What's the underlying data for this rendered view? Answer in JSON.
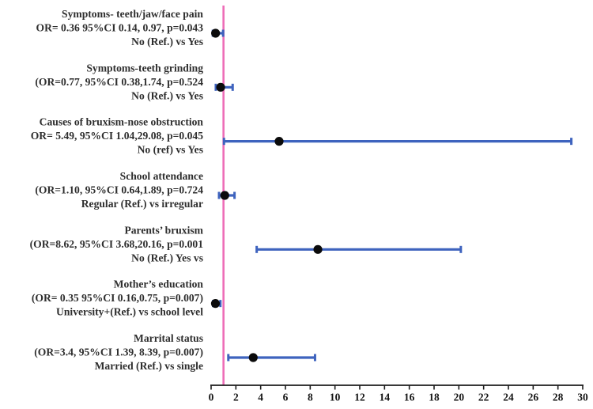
{
  "chart_data": {
    "type": "forest",
    "title": "",
    "xlabel": "",
    "ylabel": "",
    "x_axis": {
      "min": 0,
      "max": 30,
      "tick_step": 2,
      "ticks": [
        0,
        2,
        4,
        6,
        8,
        10,
        12,
        14,
        16,
        18,
        20,
        22,
        24,
        26,
        28,
        30
      ]
    },
    "reference_line": {
      "value": 1
    },
    "colors": {
      "ci_line": "#3E63BE",
      "reference_line": "#EE6DB8",
      "marker": "#0b0b0b",
      "label_text": "#2e2e2e",
      "axis": "#1c1c1c"
    },
    "legend": null,
    "grid": false,
    "rows": [
      {
        "title": "Symptoms- teeth/jaw/face pain",
        "stats": "OR= 0.36 95%CI 0.14, 0.97, p=0.043",
        "comparison": "No (Ref.) vs Yes",
        "or": 0.36,
        "ci_low": 0.14,
        "ci_high": 0.97,
        "p": 0.043
      },
      {
        "title": "Symptoms-teeth grinding",
        "stats": "(OR=0.77, 95%CI 0.38,1.74, p=0.524",
        "comparison": "No (Ref.) vs Yes",
        "or": 0.77,
        "ci_low": 0.38,
        "ci_high": 1.74,
        "p": 0.524
      },
      {
        "title": "Causes of bruxism-nose obstruction",
        "stats": "OR= 5.49, 95%CI 1.04,29.08, p=0.045",
        "comparison": "No (ref) vs Yes",
        "or": 5.49,
        "ci_low": 1.04,
        "ci_high": 29.08,
        "p": 0.045
      },
      {
        "title": "School attendance",
        "stats": "(OR=1.10, 95%CI 0.64,1.89, p=0.724",
        "comparison": "Regular (Ref.) vs irregular",
        "or": 1.1,
        "ci_low": 0.64,
        "ci_high": 1.89,
        "p": 0.724
      },
      {
        "title": "Parents’ bruxism",
        "stats": "(OR=8.62, 95%CI 3.68,20.16, p=0.001",
        "comparison": "No (Ref.) Yes vs",
        "or": 8.62,
        "ci_low": 3.68,
        "ci_high": 20.16,
        "p": 0.001
      },
      {
        "title": "Mother’s education",
        "stats": "(OR= 0.35 95%CI 0.16,0.75, p=0.007)",
        "comparison": "University+(Ref.) vs school level",
        "or": 0.35,
        "ci_low": 0.16,
        "ci_high": 0.75,
        "p": 0.007
      },
      {
        "title": "Marrital status",
        "stats": "(OR=3.4, 95%CI 1.39, 8.39, p=0.007)",
        "comparison": "Married (Ref.) vs single",
        "or": 3.4,
        "ci_low": 1.39,
        "ci_high": 8.39,
        "p": 0.007
      }
    ]
  }
}
